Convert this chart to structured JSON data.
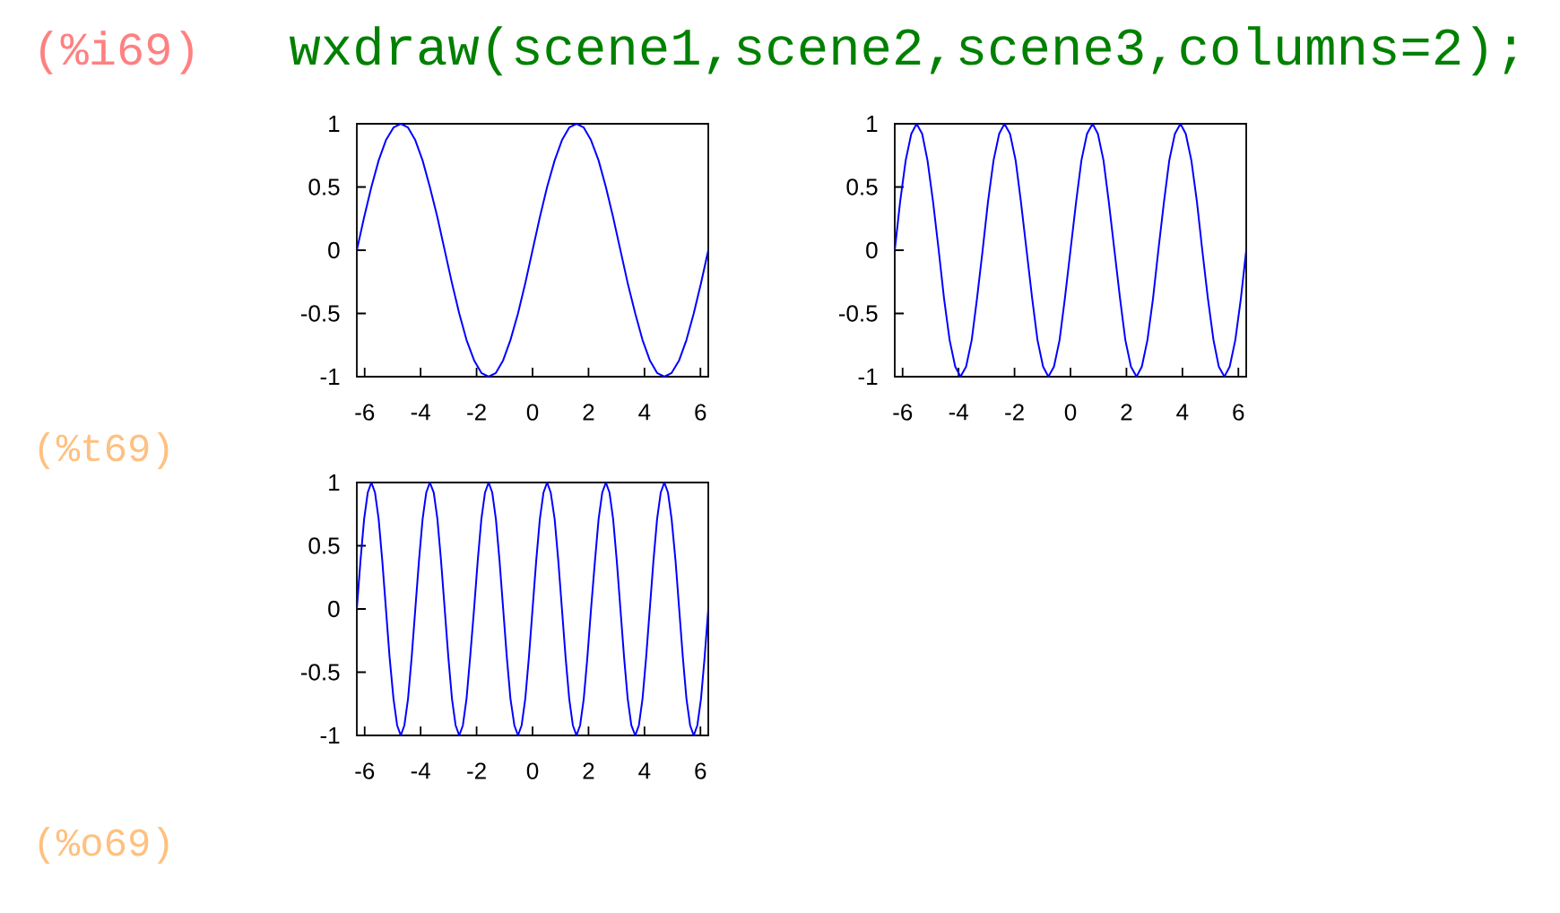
{
  "chart_data": [
    {
      "type": "line",
      "color": "#0000ff",
      "line_style": "solid",
      "xlim": [
        -6.28,
        6.28
      ],
      "ylim": [
        -1,
        1
      ],
      "xticks": [
        -6,
        -4,
        -2,
        0,
        2,
        4,
        6
      ],
      "yticks": [
        -1,
        -0.5,
        0,
        0.5,
        1
      ],
      "annotations": [
        "(%i69)",
        "wxdraw(scene1,scene2,scene3,columns=2);",
        "(%t69)",
        "(%o69)"
      ],
      "x": [
        -6.28,
        -6.02,
        -5.76,
        -5.5,
        -5.24,
        -4.97,
        -4.71,
        -4.45,
        -4.19,
        -3.93,
        -3.67,
        -3.4,
        -3.14,
        -2.88,
        -2.62,
        -2.36,
        -2.09,
        -1.83,
        -1.57,
        -1.31,
        -1.05,
        -0.79,
        -0.52,
        -0.26,
        0,
        0.26,
        0.52,
        0.79,
        1.05,
        1.31,
        1.57,
        1.83,
        2.09,
        2.36,
        2.62,
        2.88,
        3.14,
        3.4,
        3.67,
        3.93,
        4.19,
        4.45,
        4.71,
        4.97,
        5.24,
        5.5,
        5.76,
        6.02,
        6.28
      ],
      "values": [
        0,
        0.26,
        0.5,
        0.71,
        0.87,
        0.97,
        1,
        0.97,
        0.87,
        0.71,
        0.5,
        0.26,
        0,
        -0.26,
        -0.5,
        -0.71,
        -0.87,
        -0.97,
        -1,
        -0.97,
        -0.87,
        -0.71,
        -0.5,
        -0.26,
        0,
        0.26,
        0.5,
        0.71,
        0.87,
        0.97,
        1,
        0.97,
        0.87,
        0.71,
        0.5,
        0.26,
        0,
        -0.26,
        -0.5,
        -0.71,
        -0.87,
        -0.97,
        -1,
        -0.97,
        -0.87,
        -0.71,
        -0.5,
        -0.26,
        0
      ]
    },
    {
      "type": "line",
      "color": "#0000ff",
      "line_style": "solid",
      "xlim": [
        -6.28,
        6.28
      ],
      "ylim": [
        -1,
        1
      ],
      "xticks": [
        -6,
        -4,
        -2,
        0,
        2,
        4,
        6
      ],
      "yticks": [
        -1,
        -0.5,
        0,
        0.5,
        1
      ],
      "x": [
        -6.28,
        -6.09,
        -5.89,
        -5.69,
        -5.5,
        -5.3,
        -5.11,
        -4.91,
        -4.71,
        -4.52,
        -4.32,
        -4.12,
        -3.93,
        -3.73,
        -3.53,
        -3.34,
        -3.14,
        -2.95,
        -2.75,
        -2.55,
        -2.36,
        -2.16,
        -1.96,
        -1.77,
        -1.57,
        -1.37,
        -1.18,
        -0.98,
        -0.79,
        -0.59,
        -0.39,
        -0.2,
        0,
        0.2,
        0.39,
        0.59,
        0.79,
        0.98,
        1.18,
        1.37,
        1.57,
        1.77,
        1.96,
        2.16,
        2.36,
        2.55,
        2.75,
        2.95,
        3.14,
        3.34,
        3.53,
        3.73,
        3.93,
        4.12,
        4.32,
        4.52,
        4.71,
        4.91,
        5.11,
        5.3,
        5.5,
        5.69,
        5.89,
        6.09,
        6.28
      ],
      "values": [
        0,
        0.38,
        0.71,
        0.92,
        1,
        0.92,
        0.71,
        0.38,
        0,
        -0.38,
        -0.71,
        -0.92,
        -1,
        -0.92,
        -0.71,
        -0.38,
        0,
        0.38,
        0.71,
        0.92,
        1,
        0.92,
        0.71,
        0.38,
        0,
        -0.38,
        -0.71,
        -0.92,
        -1,
        -0.92,
        -0.71,
        -0.38,
        0,
        0.38,
        0.71,
        0.92,
        1,
        0.92,
        0.71,
        0.38,
        0,
        -0.38,
        -0.71,
        -0.92,
        -1,
        -0.92,
        -0.71,
        -0.38,
        0,
        0.38,
        0.71,
        0.92,
        1,
        0.92,
        0.71,
        0.38,
        0,
        -0.38,
        -0.71,
        -0.92,
        -1,
        -0.92,
        -0.71,
        -0.38,
        0
      ]
    },
    {
      "type": "line",
      "color": "#0000ff",
      "line_style": "solid",
      "xlim": [
        -6.28,
        6.28
      ],
      "ylim": [
        -1,
        1
      ],
      "xticks": [
        -6,
        -4,
        -2,
        0,
        2,
        4,
        6
      ],
      "yticks": [
        -1,
        -0.5,
        0,
        0.5,
        1
      ],
      "x": [
        -6.28,
        -6.15,
        -6.02,
        -5.89,
        -5.76,
        -5.63,
        -5.5,
        -5.37,
        -5.24,
        -5.11,
        -4.97,
        -4.84,
        -4.71,
        -4.58,
        -4.45,
        -4.32,
        -4.19,
        -4.06,
        -3.93,
        -3.8,
        -3.67,
        -3.53,
        -3.4,
        -3.27,
        -3.14,
        -3.01,
        -2.88,
        -2.75,
        -2.62,
        -2.49,
        -2.36,
        -2.23,
        -2.09,
        -1.96,
        -1.83,
        -1.7,
        -1.57,
        -1.44,
        -1.31,
        -1.18,
        -1.05,
        -0.92,
        -0.79,
        -0.65,
        -0.52,
        -0.39,
        -0.26,
        -0.13,
        0,
        0.13,
        0.26,
        0.39,
        0.52,
        0.65,
        0.79,
        0.92,
        1.05,
        1.18,
        1.31,
        1.44,
        1.57,
        1.7,
        1.83,
        1.96,
        2.09,
        2.23,
        2.36,
        2.49,
        2.62,
        2.75,
        2.88,
        3.01,
        3.14,
        3.27,
        3.4,
        3.53,
        3.67,
        3.8,
        3.93,
        4.06,
        4.19,
        4.32,
        4.45,
        4.58,
        4.71,
        4.84,
        4.97,
        5.11,
        5.24,
        5.37,
        5.5,
        5.63,
        5.76,
        5.89,
        6.02,
        6.15,
        6.28
      ],
      "values": [
        0,
        0.38,
        0.71,
        0.92,
        1,
        0.92,
        0.71,
        0.38,
        0,
        -0.38,
        -0.71,
        -0.92,
        -1,
        -0.92,
        -0.71,
        -0.38,
        0,
        0.38,
        0.71,
        0.92,
        1,
        0.92,
        0.71,
        0.38,
        0,
        -0.38,
        -0.71,
        -0.92,
        -1,
        -0.92,
        -0.71,
        -0.38,
        0,
        0.38,
        0.71,
        0.92,
        1,
        0.92,
        0.71,
        0.38,
        0,
        -0.38,
        -0.71,
        -0.92,
        -1,
        -0.92,
        -0.71,
        -0.38,
        0,
        0.38,
        0.71,
        0.92,
        1,
        0.92,
        0.71,
        0.38,
        0,
        -0.38,
        -0.71,
        -0.92,
        -1,
        -0.92,
        -0.71,
        -0.38,
        0,
        0.38,
        0.71,
        0.92,
        1,
        0.92,
        0.71,
        0.38,
        0,
        -0.38,
        -0.71,
        -0.92,
        -1,
        -0.92,
        -0.71,
        -0.38,
        0,
        0.38,
        0.71,
        0.92,
        1,
        0.92,
        0.71,
        0.38,
        0,
        -0.38,
        -0.71,
        -0.92,
        -1,
        -0.92,
        -0.71,
        -0.38,
        0
      ]
    }
  ]
}
